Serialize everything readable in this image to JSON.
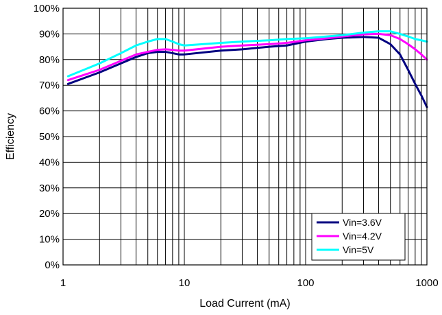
{
  "chart_data": {
    "type": "line",
    "xscale": "log",
    "xlim": [
      1,
      1000
    ],
    "ylim": [
      0,
      100
    ],
    "xlabel": "Load Current (mA)",
    "ylabel": "Efficiency",
    "x_ticks": [
      1,
      10,
      100,
      1000
    ],
    "x_tick_labels": [
      "1",
      "10",
      "100",
      "1000"
    ],
    "y_ticks": [
      0,
      10,
      20,
      30,
      40,
      50,
      60,
      70,
      80,
      90,
      100
    ],
    "y_tick_labels": [
      "0%",
      "10%",
      "20%",
      "30%",
      "40%",
      "50%",
      "60%",
      "70%",
      "80%",
      "90%",
      "100%"
    ],
    "grid": "major and minor",
    "legend": {
      "position": "bottom-right"
    },
    "series": [
      {
        "name": "Vin=3.6V",
        "color": "#000080",
        "points": [
          [
            1.1,
            70.5
          ],
          [
            2,
            75
          ],
          [
            3,
            78.5
          ],
          [
            4,
            81
          ],
          [
            5,
            82.5
          ],
          [
            6,
            83
          ],
          [
            7,
            83
          ],
          [
            8,
            82.5
          ],
          [
            9,
            82
          ],
          [
            10,
            82
          ],
          [
            20,
            83.5
          ],
          [
            30,
            84
          ],
          [
            50,
            85
          ],
          [
            70,
            85.5
          ],
          [
            100,
            87
          ],
          [
            150,
            88
          ],
          [
            200,
            88.5
          ],
          [
            300,
            88.8
          ],
          [
            400,
            88.5
          ],
          [
            500,
            86
          ],
          [
            600,
            82
          ],
          [
            700,
            76
          ],
          [
            800,
            70.5
          ],
          [
            900,
            66
          ],
          [
            1000,
            61.5
          ]
        ]
      },
      {
        "name": "Vin=4.2V",
        "color": "#FF00FF",
        "points": [
          [
            1.1,
            72
          ],
          [
            2,
            76
          ],
          [
            3,
            79.5
          ],
          [
            4,
            82
          ],
          [
            5,
            83
          ],
          [
            6,
            83.8
          ],
          [
            7,
            84
          ],
          [
            8,
            83.8
          ],
          [
            9,
            83.5
          ],
          [
            10,
            83.5
          ],
          [
            20,
            85
          ],
          [
            30,
            85.5
          ],
          [
            50,
            86
          ],
          [
            70,
            86.5
          ],
          [
            100,
            87.5
          ],
          [
            150,
            88.3
          ],
          [
            200,
            89
          ],
          [
            300,
            89.8
          ],
          [
            400,
            90
          ],
          [
            500,
            89.5
          ],
          [
            600,
            88
          ],
          [
            700,
            86
          ],
          [
            800,
            84
          ],
          [
            900,
            82
          ],
          [
            1000,
            80
          ]
        ]
      },
      {
        "name": "Vin=5V",
        "color": "#00FFFF",
        "points": [
          [
            1.1,
            73.5
          ],
          [
            2,
            78.5
          ],
          [
            3,
            82.5
          ],
          [
            4,
            85.5
          ],
          [
            5,
            87
          ],
          [
            6,
            88
          ],
          [
            7,
            88
          ],
          [
            8,
            87
          ],
          [
            9,
            86
          ],
          [
            10,
            85.5
          ],
          [
            20,
            86.5
          ],
          [
            30,
            87
          ],
          [
            50,
            87.5
          ],
          [
            70,
            88
          ],
          [
            100,
            88.3
          ],
          [
            150,
            89
          ],
          [
            200,
            89.5
          ],
          [
            300,
            90.5
          ],
          [
            400,
            91
          ],
          [
            500,
            91
          ],
          [
            600,
            90
          ],
          [
            700,
            89
          ],
          [
            800,
            88
          ],
          [
            900,
            87.5
          ],
          [
            1000,
            87
          ]
        ]
      }
    ]
  }
}
